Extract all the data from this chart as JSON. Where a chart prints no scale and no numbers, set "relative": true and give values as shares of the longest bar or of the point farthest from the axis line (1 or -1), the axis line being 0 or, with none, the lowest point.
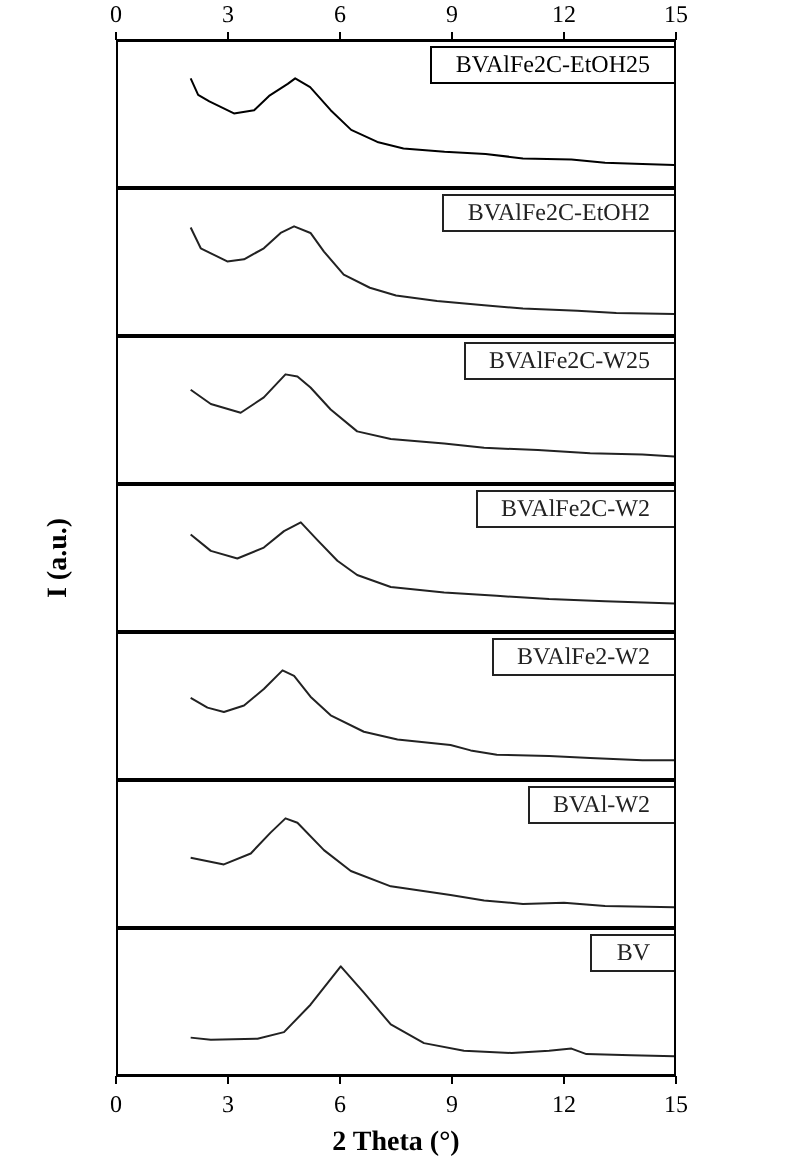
{
  "chart_data": [
    {
      "type": "line",
      "relative": true,
      "xlim": [
        0,
        15
      ],
      "xticks": [
        0,
        3,
        6,
        9,
        12,
        15
      ],
      "tick_labels": "x",
      "legend": "top right",
      "grid": false,
      "marker": "none",
      "line_style": "solid",
      "series": [
        {
          "name": "BVAlFe2C-EtOH25",
          "color": "#000000",
          "x": [
            2.0,
            2.2,
            2.5,
            3.16,
            3.7,
            4.1,
            4.6,
            4.8,
            5.2,
            5.75,
            6.3,
            7.0,
            7.7,
            8.8,
            9.9,
            10.9,
            12.2,
            13.1,
            14.1,
            14.95
          ],
          "values": [
            1.0,
            0.85,
            0.79,
            0.68,
            0.71,
            0.84,
            0.95,
            1.0,
            0.92,
            0.71,
            0.53,
            0.42,
            0.36,
            0.33,
            0.31,
            0.27,
            0.26,
            0.23,
            0.22,
            0.21
          ]
        }
      ]
    },
    {
      "type": "line",
      "relative": true,
      "xlim": [
        0,
        15
      ],
      "xticks": [
        0,
        3,
        6,
        9,
        12,
        15
      ],
      "tick_labels": false,
      "legend": "top right",
      "grid": false,
      "marker": "none",
      "line_style": "solid",
      "series": [
        {
          "name": "BVAlFe2C-EtOH2",
          "color": "#222222",
          "x": [
            2.0,
            2.27,
            2.98,
            3.43,
            3.96,
            4.41,
            4.77,
            5.21,
            5.57,
            6.1,
            6.8,
            7.5,
            8.6,
            9.86,
            10.9,
            12.36,
            13.4,
            14.95
          ],
          "values": [
            0.99,
            0.8,
            0.68,
            0.7,
            0.8,
            0.94,
            1.0,
            0.94,
            0.77,
            0.56,
            0.44,
            0.37,
            0.32,
            0.28,
            0.25,
            0.23,
            0.21,
            0.2
          ]
        }
      ]
    },
    {
      "type": "line",
      "relative": true,
      "xlim": [
        0,
        15
      ],
      "xticks": [
        0,
        3,
        6,
        9,
        12,
        15
      ],
      "tick_labels": false,
      "legend": "top right",
      "grid": false,
      "marker": "none",
      "line_style": "solid",
      "series": [
        {
          "name": "BVAlFe2C-W25",
          "color": "#222222",
          "x": [
            2.0,
            2.54,
            3.34,
            3.96,
            4.54,
            4.86,
            5.21,
            5.75,
            6.46,
            7.36,
            8.79,
            9.86,
            11.3,
            12.7,
            14.1,
            14.95
          ],
          "values": [
            0.86,
            0.73,
            0.65,
            0.79,
            1.0,
            0.98,
            0.88,
            0.68,
            0.48,
            0.41,
            0.37,
            0.33,
            0.31,
            0.28,
            0.27,
            0.25
          ]
        }
      ]
    },
    {
      "type": "line",
      "relative": true,
      "xlim": [
        0,
        15
      ],
      "xticks": [
        0,
        3,
        6,
        9,
        12,
        15
      ],
      "tick_labels": false,
      "ylabel": "I (a.u.)",
      "legend": "top right",
      "grid": false,
      "marker": "none",
      "line_style": "solid",
      "series": [
        {
          "name": "BVAlFe2C-W2",
          "color": "#222222",
          "x": [
            2.0,
            2.54,
            3.25,
            3.96,
            4.5,
            4.95,
            5.39,
            5.93,
            6.46,
            7.36,
            8.79,
            10.2,
            11.6,
            13.1,
            14.95
          ],
          "values": [
            0.89,
            0.74,
            0.67,
            0.77,
            0.92,
            1.0,
            0.84,
            0.65,
            0.52,
            0.41,
            0.36,
            0.33,
            0.3,
            0.28,
            0.26
          ]
        }
      ]
    },
    {
      "type": "line",
      "relative": true,
      "xlim": [
        0,
        15
      ],
      "xticks": [
        0,
        3,
        6,
        9,
        12,
        15
      ],
      "tick_labels": false,
      "legend": "top right",
      "grid": false,
      "marker": "none",
      "line_style": "solid",
      "series": [
        {
          "name": "BVAlFe2-W2",
          "color": "#222222",
          "x": [
            2.0,
            2.45,
            2.89,
            3.43,
            3.96,
            4.46,
            4.77,
            5.21,
            5.75,
            6.64,
            7.54,
            8.96,
            9.5,
            10.2,
            11.6,
            12.7,
            14.1,
            14.95
          ],
          "values": [
            0.75,
            0.66,
            0.62,
            0.68,
            0.83,
            1.0,
            0.95,
            0.76,
            0.59,
            0.44,
            0.37,
            0.32,
            0.27,
            0.23,
            0.22,
            0.2,
            0.18,
            0.18
          ]
        }
      ]
    },
    {
      "type": "line",
      "relative": true,
      "xlim": [
        0,
        15
      ],
      "xticks": [
        0,
        3,
        6,
        9,
        12,
        15
      ],
      "tick_labels": false,
      "legend": "top right",
      "grid": false,
      "marker": "none",
      "line_style": "solid",
      "series": [
        {
          "name": "BVAl-W2",
          "color": "#222222",
          "x": [
            2.0,
            2.89,
            3.61,
            4.14,
            4.54,
            4.86,
            5.57,
            6.29,
            7.36,
            8.96,
            9.86,
            10.9,
            12.0,
            13.1,
            14.95
          ],
          "values": [
            0.64,
            0.58,
            0.68,
            0.87,
            1.0,
            0.96,
            0.71,
            0.52,
            0.38,
            0.3,
            0.25,
            0.22,
            0.23,
            0.2,
            0.19
          ]
        }
      ]
    },
    {
      "type": "line",
      "relative": true,
      "xlim": [
        0,
        15
      ],
      "xticks": [
        0,
        3,
        6,
        9,
        12,
        15
      ],
      "tick_labels": "x",
      "xlabel": "2 Theta (°)",
      "legend": "top right",
      "grid": false,
      "marker": "none",
      "line_style": "solid",
      "series": [
        {
          "name": "BV",
          "color": "#222222",
          "x": [
            2.0,
            2.54,
            3.79,
            4.5,
            5.21,
            6.02,
            6.64,
            7.36,
            8.25,
            9.32,
            10.6,
            11.6,
            12.2,
            12.6,
            13.8,
            14.95
          ],
          "values": [
            0.35,
            0.33,
            0.34,
            0.4,
            0.65,
            1.0,
            0.76,
            0.47,
            0.3,
            0.23,
            0.21,
            0.23,
            0.25,
            0.2,
            0.19,
            0.18
          ]
        }
      ]
    }
  ]
}
